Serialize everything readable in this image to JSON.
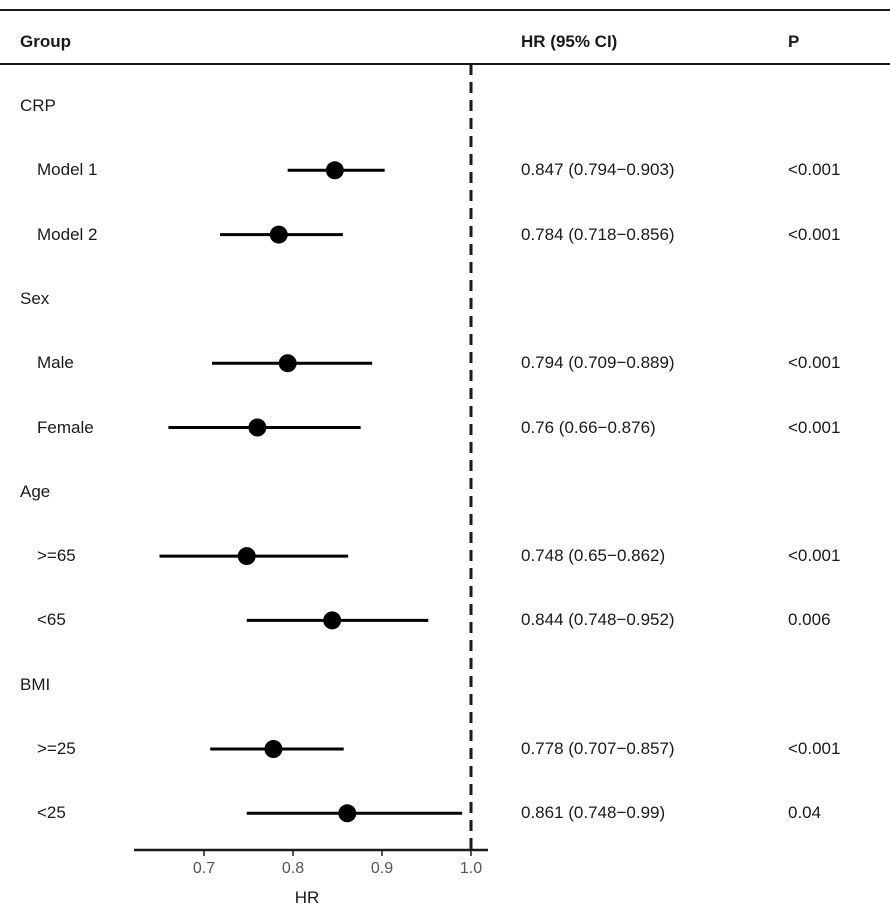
{
  "chart_data": {
    "type": "forest",
    "header": {
      "group": "Group",
      "hr_ci": "HR (95% CI)",
      "p": "P"
    },
    "xlabel": "HR",
    "xticks": [
      0.7,
      0.8,
      0.9,
      1.0
    ],
    "xtick_labels": [
      "0.7",
      "0.8",
      "0.9",
      "1.0"
    ],
    "xlim": [
      0.62,
      1.02
    ],
    "reference_line": 1.0,
    "rows": [
      {
        "kind": "group",
        "label": "CRP"
      },
      {
        "kind": "item",
        "label": "Model 1",
        "hr": 0.847,
        "lower": 0.794,
        "upper": 0.903,
        "ci_text": "0.847 (0.794−0.903)",
        "p": "<0.001"
      },
      {
        "kind": "item",
        "label": "Model 2",
        "hr": 0.784,
        "lower": 0.718,
        "upper": 0.856,
        "ci_text": "0.784 (0.718−0.856)",
        "p": "<0.001"
      },
      {
        "kind": "group",
        "label": "Sex"
      },
      {
        "kind": "item",
        "label": "Male",
        "hr": 0.794,
        "lower": 0.709,
        "upper": 0.889,
        "ci_text": "0.794 (0.709−0.889)",
        "p": "<0.001"
      },
      {
        "kind": "item",
        "label": "Female",
        "hr": 0.76,
        "lower": 0.66,
        "upper": 0.876,
        "ci_text": "0.76 (0.66−0.876)",
        "p": "<0.001"
      },
      {
        "kind": "group",
        "label": "Age"
      },
      {
        "kind": "item",
        "label": ">=65",
        "hr": 0.748,
        "lower": 0.65,
        "upper": 0.862,
        "ci_text": "0.748 (0.65−0.862)",
        "p": "<0.001"
      },
      {
        "kind": "item",
        "label": "<65",
        "hr": 0.844,
        "lower": 0.748,
        "upper": 0.952,
        "ci_text": "0.844 (0.748−0.952)",
        "p": "0.006"
      },
      {
        "kind": "group",
        "label": "BMI"
      },
      {
        "kind": "item",
        "label": ">=25",
        "hr": 0.778,
        "lower": 0.707,
        "upper": 0.857,
        "ci_text": "0.778 (0.707−0.857)",
        "p": "<0.001"
      },
      {
        "kind": "item",
        "label": "<25",
        "hr": 0.861,
        "lower": 0.748,
        "upper": 0.99,
        "ci_text": "0.861 (0.748−0.99)",
        "p": "0.04"
      }
    ]
  }
}
